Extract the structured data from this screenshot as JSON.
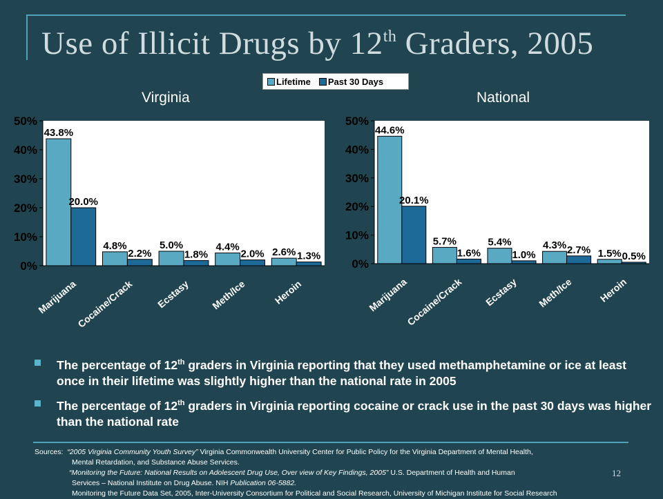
{
  "title": {
    "main": "Use of Illicit Drugs by 12",
    "sup": "th",
    "rest": " Graders, 2005"
  },
  "legend": {
    "lifetime": "Lifetime",
    "past30": "Past 30 Days"
  },
  "colors": {
    "lifetime": "#5aa9c3",
    "past30": "#1d6a98",
    "background": "#214550",
    "plot": "#ffffff"
  },
  "chart_data": [
    {
      "type": "bar",
      "title": "Virginia",
      "categories": [
        "Marijuana",
        "Cocaine/Crack",
        "Ecstasy",
        "Meth/Ice",
        "Heroin"
      ],
      "series": [
        {
          "name": "Lifetime",
          "values": [
            43.8,
            4.8,
            5.0,
            4.4,
            2.6
          ],
          "labels": [
            "43.8%",
            "4.8%",
            "5.0%",
            "4.4%",
            "2.6%"
          ]
        },
        {
          "name": "Past 30 Days",
          "values": [
            20.0,
            2.2,
            1.8,
            2.0,
            1.3
          ],
          "labels": [
            "20.0%",
            "2.2%",
            "1.8%",
            "2.0%",
            "1.3%"
          ]
        }
      ],
      "yticks": [
        "0%",
        "10%",
        "20%",
        "30%",
        "40%",
        "50%"
      ],
      "ylim": [
        0,
        50
      ],
      "grid": false,
      "legend": "top-center"
    },
    {
      "type": "bar",
      "title": "National",
      "categories": [
        "Marijuana",
        "Cocaine/Crack",
        "Ecstasy",
        "Meth/Ice",
        "Heroin"
      ],
      "series": [
        {
          "name": "Lifetime",
          "values": [
            44.6,
            5.7,
            5.4,
            4.3,
            1.5
          ],
          "labels": [
            "44.6%",
            "5.7%",
            "5.4%",
            "4.3%",
            "1.5%"
          ]
        },
        {
          "name": "Past 30 Days",
          "values": [
            20.1,
            1.6,
            1.0,
            2.7,
            0.5
          ],
          "labels": [
            "20.1%",
            "1.6%",
            "1.0%",
            "2.7%",
            "0.5%"
          ]
        }
      ],
      "yticks": [
        "0%",
        "10%",
        "20%",
        "30%",
        "40%",
        "50%"
      ],
      "ylim": [
        0,
        50
      ],
      "grid": false,
      "legend": "top-center"
    }
  ],
  "bullets": [
    {
      "pre": "The percentage of 12",
      "sup": "th",
      "post": " graders in Virginia reporting that they used methamphetamine or ice at least once in their lifetime was slightly higher than the national rate in 2005"
    },
    {
      "pre": "The percentage of 12",
      "sup": "th",
      "post": " graders in Virginia reporting cocaine or crack use in the past 30 days was higher than the national rate"
    }
  ],
  "sources": {
    "label": "Sources:",
    "s1_title": "“2005 Virginia Community Youth Survey”",
    "s1_text": " Virginia Commonwealth University Center for Public Policy for the Virginia Department of Mental Health,",
    "s1_cont": "Mental Retardation, and Substance Abuse Services.",
    "s2_title": "“Monitoring the Future: National Results on Adolescent Drug Use, Over view of Key Findings, 2005”",
    "s2_text": " U.S. Department of Health and Human",
    "s2_cont_a": "Services – National Institute on Drug Abuse. NIH ",
    "s2_cont_b": "Publication 06-5882.",
    "s3": "Monitoring the Future Data Set, 2005,  Inter-University Consortium for Political and Social Research, University of Michigan Institute for Social Research"
  },
  "page_number": "12"
}
